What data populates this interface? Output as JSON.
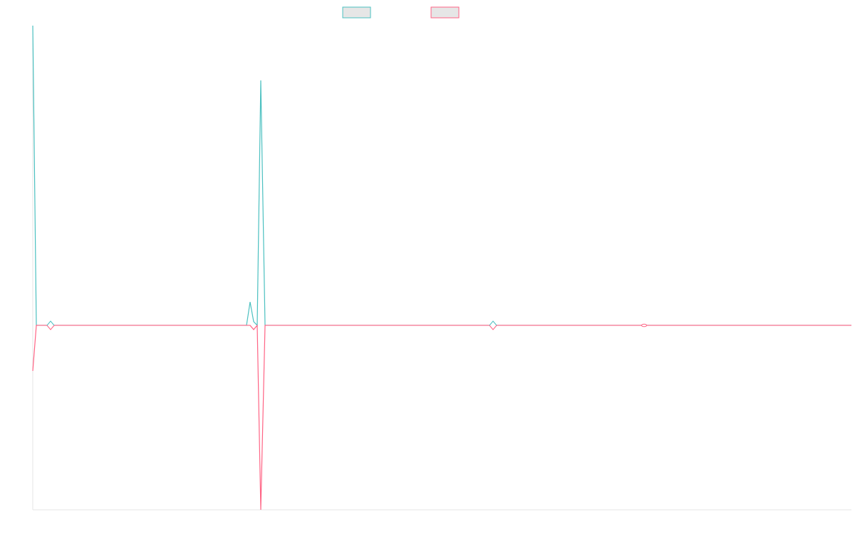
{
  "chart_data": {
    "type": "line",
    "x": [
      0,
      5,
      25,
      300,
      305,
      310,
      315,
      320,
      326,
      646,
      858,
      1149
    ],
    "series": [
      {
        "color": "#4bc0c0",
        "values": [
          1.625,
          0,
          0,
          0,
          0.127,
          0.02,
          0,
          1.328,
          0,
          0,
          0,
          0
        ]
      },
      {
        "color": "#ff6384",
        "values": [
          -0.247,
          0,
          0,
          0,
          0,
          -0.023,
          0,
          -1,
          0,
          0,
          0,
          0
        ]
      }
    ],
    "xlim": [
      0,
      1149
    ],
    "ylim": [
      -1,
      1.625
    ],
    "grid": false
  }
}
